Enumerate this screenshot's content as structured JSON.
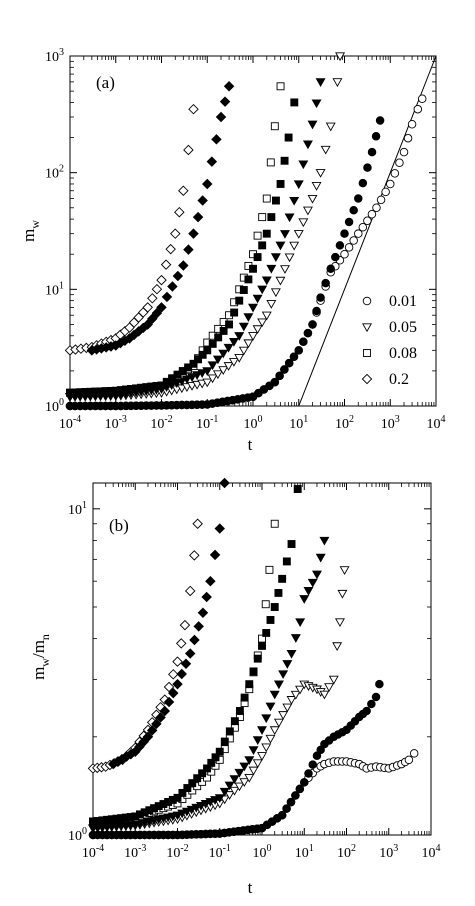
{
  "chart_data": [
    {
      "type": "scatter",
      "panel_label": "(a)",
      "xlabel": "t",
      "ylabel": "m_w",
      "ylabel_main": "m",
      "ylabel_sub": "w",
      "xscale": "log",
      "yscale": "log",
      "xlim": [
        0.0001,
        10000
      ],
      "ylim": [
        1,
        1000
      ],
      "x_ticks": [
        {
          "base": "10",
          "exp": "-4",
          "value": 0.0001
        },
        {
          "base": "10",
          "exp": "-3",
          "value": 0.001
        },
        {
          "base": "10",
          "exp": "-2",
          "value": 0.01
        },
        {
          "base": "10",
          "exp": "-1",
          "value": 0.1
        },
        {
          "base": "10",
          "exp": "0",
          "value": 1
        },
        {
          "base": "10",
          "exp": "1",
          "value": 10
        },
        {
          "base": "10",
          "exp": "2",
          "value": 100
        },
        {
          "base": "10",
          "exp": "3",
          "value": 1000
        },
        {
          "base": "10",
          "exp": "4",
          "value": 10000
        }
      ],
      "y_ticks": [
        {
          "base": "10",
          "exp": "0",
          "value": 1
        },
        {
          "base": "10",
          "exp": "1",
          "value": 10
        },
        {
          "base": "10",
          "exp": "2",
          "value": 100
        },
        {
          "base": "10",
          "exp": "3",
          "value": 1000
        }
      ],
      "legend_position": "bottom-right",
      "legend": [
        {
          "label": "0.01",
          "marker": "circle"
        },
        {
          "label": "0.05",
          "marker": "triangle-down"
        },
        {
          "label": "0.08",
          "marker": "square"
        },
        {
          "label": "0.2",
          "marker": "diamond"
        }
      ],
      "reference_line": {
        "x": [
          10,
          10000
        ],
        "y": [
          1,
          1000
        ]
      },
      "series": [
        {
          "name": "0.01",
          "marker": "circle",
          "filled": false,
          "x": [
            0.0001,
            0.001,
            0.01,
            0.1,
            1,
            3,
            10,
            20,
            30,
            50,
            100,
            200,
            500,
            1000,
            2000,
            3000,
            4000,
            5000
          ],
          "y": [
            1.0,
            1.0,
            1.01,
            1.03,
            1.2,
            1.6,
            3.0,
            5.0,
            8.0,
            14,
            20,
            30,
            50,
            80,
            150,
            260,
            350,
            430
          ]
        },
        {
          "name": "0.01",
          "marker": "circle",
          "filled": true,
          "x": [
            0.0001,
            0.001,
            0.01,
            0.1,
            1,
            3,
            10,
            20,
            30,
            50,
            100,
            200,
            400,
            600
          ],
          "y": [
            1.0,
            1.0,
            1.01,
            1.03,
            1.2,
            1.6,
            3.0,
            5.0,
            8.5,
            15,
            30,
            60,
            150,
            280
          ]
        },
        {
          "name": "0.05",
          "marker": "triangle-down",
          "filled": false,
          "x": [
            0.0001,
            0.001,
            0.01,
            0.1,
            0.5,
            1,
            2,
            5,
            10,
            20,
            30,
            50,
            70,
            80
          ],
          "y": [
            1.2,
            1.22,
            1.3,
            1.6,
            2.6,
            4,
            6,
            15,
            30,
            60,
            100,
            250,
            600,
            1000
          ]
        },
        {
          "name": "0.05",
          "marker": "triangle-down",
          "filled": true,
          "x": [
            0.0001,
            0.001,
            0.01,
            0.1,
            0.5,
            1,
            2,
            5,
            10,
            20,
            30
          ],
          "y": [
            1.2,
            1.25,
            1.4,
            2.0,
            4,
            7,
            12,
            30,
            80,
            260,
            600
          ]
        },
        {
          "name": "0.08",
          "marker": "square",
          "filled": false,
          "x": [
            0.0001,
            0.001,
            0.01,
            0.05,
            0.1,
            0.3,
            0.5,
            1,
            2,
            3,
            4
          ],
          "y": [
            1.3,
            1.35,
            1.5,
            2.2,
            3.5,
            6,
            10,
            20,
            60,
            250,
            550
          ]
        },
        {
          "name": "0.08",
          "marker": "square",
          "filled": true,
          "x": [
            0.0001,
            0.001,
            0.01,
            0.05,
            0.1,
            0.3,
            0.5,
            1,
            2,
            4,
            6,
            8
          ],
          "y": [
            1.3,
            1.35,
            1.5,
            2.3,
            3.0,
            5,
            8,
            15,
            30,
            80,
            200,
            400
          ]
        },
        {
          "name": "0.2",
          "marker": "diamond",
          "filled": false,
          "x": [
            0.0001,
            0.0003,
            0.001,
            0.002,
            0.005,
            0.01,
            0.02,
            0.03,
            0.05
          ],
          "y": [
            3.0,
            3.2,
            3.8,
            4.7,
            7,
            12,
            30,
            70,
            350
          ]
        },
        {
          "name": "0.2",
          "marker": "diamond",
          "filled": true,
          "x": [
            0.0003,
            0.001,
            0.002,
            0.005,
            0.01,
            0.03,
            0.05,
            0.1,
            0.2,
            0.3
          ],
          "y": [
            3.0,
            3.3,
            3.8,
            5,
            7,
            16,
            30,
            80,
            300,
            550
          ]
        }
      ]
    },
    {
      "type": "scatter",
      "panel_label": "(b)",
      "xlabel": "t",
      "ylabel": "m_w/m_n",
      "ylabel_main": "m",
      "ylabel_sub1": "w",
      "ylabel_mid": "/m",
      "ylabel_sub2": "n",
      "xscale": "log",
      "yscale": "log",
      "xlim": [
        0.0001,
        10000
      ],
      "ylim": [
        1,
        12
      ],
      "x_ticks": [
        {
          "base": "10",
          "exp": "-4",
          "value": 0.0001
        },
        {
          "base": "10",
          "exp": "-3",
          "value": 0.001
        },
        {
          "base": "10",
          "exp": "-2",
          "value": 0.01
        },
        {
          "base": "10",
          "exp": "-1",
          "value": 0.1
        },
        {
          "base": "10",
          "exp": "0",
          "value": 1
        },
        {
          "base": "10",
          "exp": "1",
          "value": 10
        },
        {
          "base": "10",
          "exp": "2",
          "value": 100
        },
        {
          "base": "10",
          "exp": "3",
          "value": 1000
        },
        {
          "base": "10",
          "exp": "4",
          "value": 10000
        }
      ],
      "y_ticks": [
        {
          "base": "10",
          "exp": "0",
          "value": 1
        },
        {
          "base": "10",
          "exp": "1",
          "value": 10
        }
      ],
      "series": [
        {
          "name": "0.01",
          "marker": "circle",
          "filled": false,
          "x": [
            0.0001,
            0.001,
            0.01,
            0.1,
            1,
            3,
            10,
            20,
            30,
            50,
            100,
            200,
            300,
            500,
            1000,
            2000,
            3000,
            4000
          ],
          "y": [
            1.0,
            1.0,
            1.0,
            1.01,
            1.05,
            1.15,
            1.45,
            1.6,
            1.65,
            1.68,
            1.68,
            1.65,
            1.6,
            1.62,
            1.6,
            1.65,
            1.7,
            1.78
          ]
        },
        {
          "name": "0.01",
          "marker": "circle",
          "filled": true,
          "x": [
            0.0001,
            0.001,
            0.01,
            0.1,
            1,
            3,
            10,
            20,
            30,
            50,
            100,
            200,
            300,
            500,
            600
          ],
          "y": [
            1.0,
            1.0,
            1.0,
            1.01,
            1.05,
            1.15,
            1.45,
            1.75,
            1.9,
            2.0,
            2.1,
            2.3,
            2.4,
            2.65,
            2.9
          ]
        },
        {
          "name": "0.05",
          "marker": "triangle-down",
          "filled": false,
          "x": [
            0.0001,
            0.001,
            0.01,
            0.1,
            0.5,
            1,
            2,
            5,
            10,
            20,
            30,
            50,
            60,
            70,
            80,
            90
          ],
          "y": [
            1.05,
            1.07,
            1.12,
            1.25,
            1.5,
            1.75,
            2.1,
            2.6,
            2.9,
            2.8,
            2.7,
            3.0,
            3.8,
            4.5,
            5.5,
            6.5
          ]
        },
        {
          "name": "0.05",
          "marker": "triangle-down",
          "filled": true,
          "x": [
            0.0001,
            0.001,
            0.01,
            0.1,
            0.5,
            1,
            2,
            5,
            8,
            10,
            20,
            30
          ],
          "y": [
            1.05,
            1.08,
            1.15,
            1.3,
            1.7,
            2.1,
            2.7,
            3.6,
            4.5,
            5.3,
            6.3,
            8.0
          ]
        },
        {
          "name": "0.08",
          "marker": "square",
          "filled": false,
          "x": [
            0.0001,
            0.001,
            0.01,
            0.05,
            0.1,
            0.3,
            0.5,
            1,
            1.5,
            2
          ],
          "y": [
            1.1,
            1.13,
            1.25,
            1.5,
            1.7,
            2.3,
            2.8,
            4.0,
            6.5,
            9.0
          ]
        },
        {
          "name": "0.08",
          "marker": "square",
          "filled": true,
          "x": [
            0.0001,
            0.001,
            0.01,
            0.05,
            0.1,
            0.3,
            0.5,
            1,
            2,
            3,
            5,
            7
          ],
          "y": [
            1.1,
            1.14,
            1.3,
            1.6,
            1.8,
            2.4,
            2.9,
            3.8,
            5.0,
            6.1,
            7.8,
            11.5
          ]
        },
        {
          "name": "0.2",
          "marker": "diamond",
          "filled": false,
          "x": [
            0.0001,
            0.0002,
            0.0005,
            0.001,
            0.002,
            0.005,
            0.01,
            0.015,
            0.02,
            0.025,
            0.03
          ],
          "y": [
            1.6,
            1.62,
            1.7,
            1.85,
            2.1,
            2.6,
            3.4,
            4.4,
            5.6,
            7.2,
            9.0
          ]
        },
        {
          "name": "0.2",
          "marker": "diamond",
          "filled": true,
          "x": [
            0.0003,
            0.001,
            0.002,
            0.005,
            0.01,
            0.02,
            0.04,
            0.06,
            0.1,
            0.13
          ],
          "y": [
            1.65,
            1.8,
            2.0,
            2.4,
            2.9,
            3.6,
            4.8,
            6.0,
            8.7,
            12
          ]
        }
      ]
    }
  ]
}
